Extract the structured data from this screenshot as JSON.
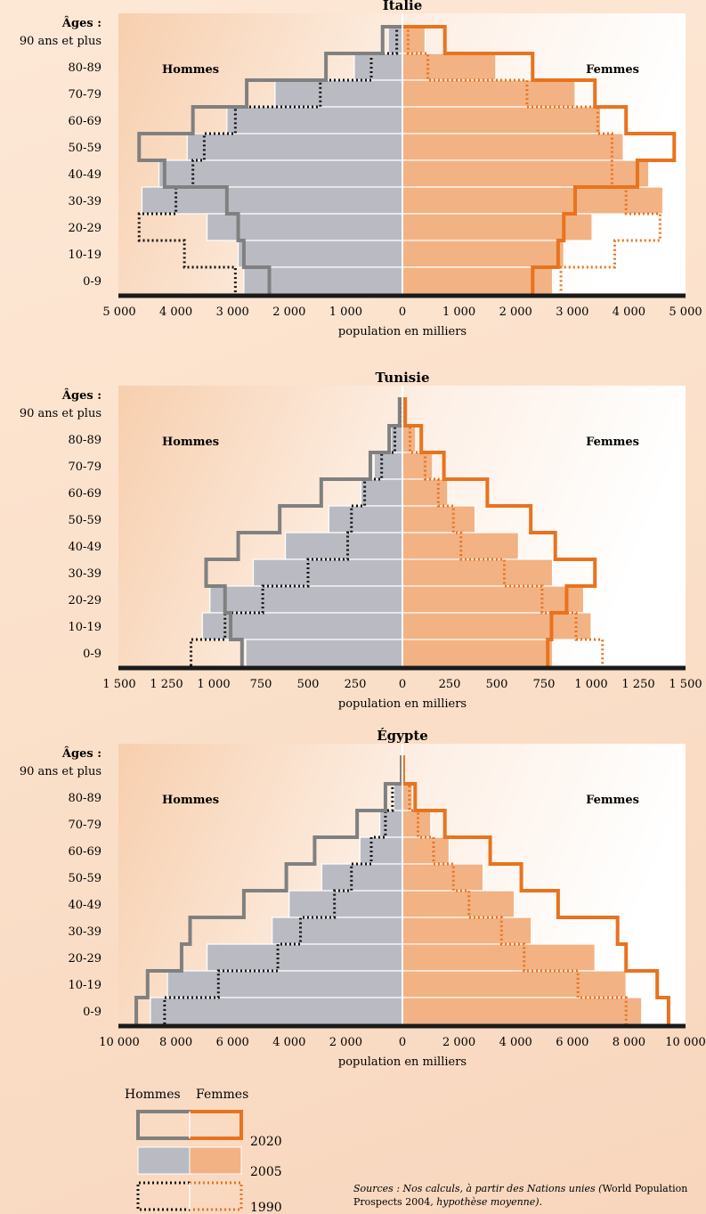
{
  "common": {
    "ages_label": "Âges :",
    "age_groups": [
      "90 ans et plus",
      "80-89",
      "70-79",
      "60-69",
      "50-59",
      "40-49",
      "30-39",
      "20-29",
      "10-19",
      "0-9"
    ],
    "men_label": "Hommes",
    "women_label": "Femmes",
    "xlabel": "population en milliers"
  },
  "colors": {
    "men_fill": "#babbc2",
    "women_fill": "#f2b283",
    "men_2020": "#808080",
    "women_2020": "#e8731f",
    "men_1990": "#111111",
    "women_1990": "#e8731f",
    "axis": "#1a1a1a"
  },
  "chart_data": [
    {
      "type": "population-pyramid",
      "title": "Italie",
      "xlim": [
        -5000,
        5000
      ],
      "tick_values": [
        -5000,
        -4000,
        -3000,
        -2000,
        -1000,
        0,
        1000,
        2000,
        3000,
        4000,
        5000
      ],
      "tick_labels": [
        "5 000",
        "4 000",
        "3 000",
        "2 000",
        "1 000",
        "0",
        "1 000",
        "2 000",
        "3 000",
        "4 000",
        "5 000"
      ],
      "series": [
        {
          "year": "2005",
          "men": [
            250,
            850,
            2250,
            3100,
            3800,
            4300,
            4600,
            3450,
            2900,
            2800
          ],
          "women": [
            400,
            1650,
            3050,
            3500,
            3900,
            4350,
            4600,
            3350,
            2850,
            2650
          ]
        },
        {
          "year": "2020",
          "men": [
            350,
            1350,
            2750,
            3700,
            4650,
            4200,
            3100,
            2900,
            2800,
            2350
          ],
          "women": [
            750,
            2300,
            3400,
            3950,
            4800,
            4150,
            3050,
            2850,
            2750,
            2300
          ]
        },
        {
          "year": "1990",
          "men": [
            100,
            550,
            1450,
            2950,
            3500,
            3700,
            4000,
            4650,
            3850,
            2950
          ],
          "women": [
            100,
            450,
            2200,
            3450,
            3700,
            3700,
            3950,
            4550,
            3750,
            2800
          ]
        }
      ]
    },
    {
      "type": "population-pyramid",
      "title": "Tunisie",
      "xlim": [
        -1500,
        1500
      ],
      "tick_values": [
        -1500,
        -1250,
        -1000,
        -750,
        -500,
        -250,
        0,
        250,
        500,
        750,
        1000,
        1250,
        1500
      ],
      "tick_labels": [
        "1 500",
        "1 250",
        "1 000",
        "750",
        "500",
        "250",
        "0",
        "250",
        "500",
        "750",
        "1 000",
        "1 250",
        "1 500"
      ],
      "series": [
        {
          "year": "2005",
          "men": [
            15,
            60,
            150,
            220,
            390,
            620,
            790,
            1020,
            1060,
            830
          ],
          "women": [
            15,
            70,
            160,
            240,
            385,
            615,
            795,
            960,
            1000,
            795
          ]
        },
        {
          "year": "2020",
          "men": [
            15,
            70,
            170,
            430,
            650,
            870,
            1040,
            940,
            910,
            850
          ],
          "women": [
            15,
            100,
            220,
            450,
            680,
            810,
            1020,
            870,
            790,
            770
          ]
        },
        {
          "year": "1990",
          "men": [
            5,
            40,
            110,
            200,
            270,
            290,
            500,
            740,
            940,
            1120
          ],
          "women": [
            5,
            40,
            120,
            190,
            270,
            310,
            540,
            740,
            920,
            1060
          ]
        }
      ]
    },
    {
      "type": "population-pyramid",
      "title": "Égypte",
      "xlim": [
        -10000,
        10000
      ],
      "tick_values": [
        -10000,
        -8000,
        -6000,
        -4000,
        -2000,
        0,
        2000,
        4000,
        6000,
        8000,
        10000
      ],
      "tick_labels": [
        "10 000",
        "8 000",
        "6 000",
        "4 000",
        "2 000",
        "0",
        "2 000",
        "4 000",
        "6 000",
        "8 000",
        "10 000"
      ],
      "series": [
        {
          "year": "2005",
          "men": [
            30,
            300,
            800,
            1500,
            2850,
            4000,
            4600,
            6900,
            8300,
            8900
          ],
          "women": [
            30,
            350,
            1000,
            1650,
            2850,
            3950,
            4550,
            6800,
            7900,
            8450
          ]
        },
        {
          "year": "2020",
          "men": [
            30,
            600,
            1600,
            3100,
            4100,
            5600,
            7500,
            7800,
            9000,
            9400
          ],
          "women": [
            30,
            450,
            1500,
            3100,
            4200,
            5500,
            7600,
            7900,
            9000,
            9400
          ]
        },
        {
          "year": "1990",
          "men": [
            5,
            350,
            600,
            1100,
            1800,
            2400,
            3600,
            4400,
            6500,
            8400
          ],
          "women": [
            5,
            250,
            550,
            1100,
            1800,
            2350,
            3500,
            4300,
            6200,
            7900
          ]
        }
      ]
    }
  ],
  "legend": {
    "men_label": "Hommes",
    "women_label": "Femmes",
    "items": [
      {
        "year": "2020"
      },
      {
        "year": "2005"
      },
      {
        "year": "1990"
      }
    ]
  },
  "source": {
    "line1_italic": "Sources : Nos calculs, à partir des Nations unies (",
    "line1_normal": "World Population",
    "line2_normal": "Prospects 2004",
    "line2_italic": ", hypothèse moyenne)."
  }
}
